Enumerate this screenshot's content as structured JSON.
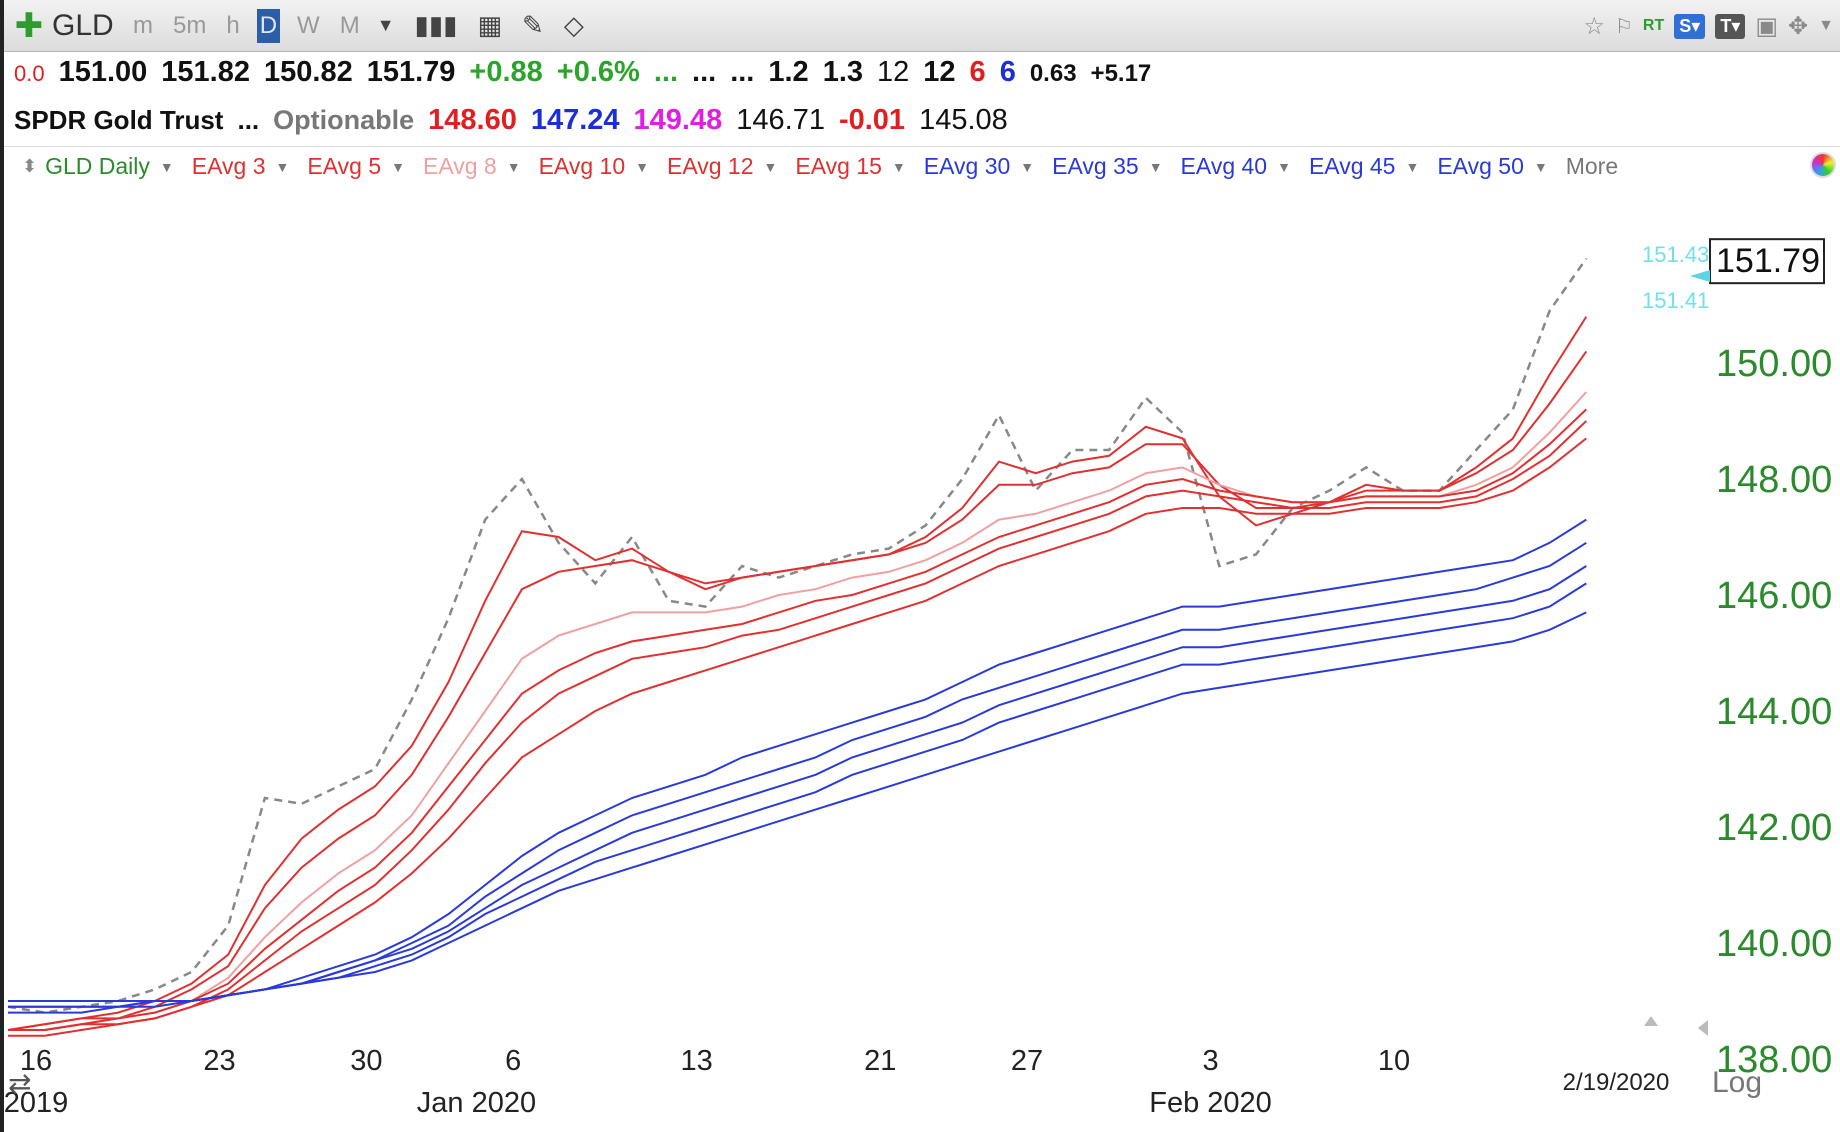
{
  "toolbar": {
    "symbol": "GLD",
    "timeframes": [
      "m",
      "5m",
      "h",
      "D",
      "W",
      "M"
    ],
    "active_timeframe": "D",
    "rt_label": "RT",
    "s_label": "S",
    "t_label": "T"
  },
  "quote": {
    "row1": [
      "0.0",
      "151.00",
      "151.82",
      "150.82",
      "151.79",
      "+0.88",
      "+0.6%",
      "...",
      "...",
      "...",
      "1.2",
      "1.3",
      "12",
      "12",
      "6",
      "6",
      "0.63",
      "+5.17"
    ],
    "name": "SPDR Gold Trust",
    "ellipsis": "...",
    "optionable": "Optionable",
    "row2_values": [
      "148.60",
      "147.24",
      "149.48",
      "146.71",
      "-0.01",
      "145.08"
    ]
  },
  "indicators": [
    {
      "label": "GLD Daily",
      "color": "#2b8a2b"
    },
    {
      "label": "EAvg 3",
      "color": "#e03030"
    },
    {
      "label": "EAvg 5",
      "color": "#e03030"
    },
    {
      "label": "EAvg 8",
      "color": "#f0a0a0"
    },
    {
      "label": "EAvg 10",
      "color": "#e03030"
    },
    {
      "label": "EAvg 12",
      "color": "#e03030"
    },
    {
      "label": "EAvg 15",
      "color": "#e03030"
    },
    {
      "label": "EAvg 30",
      "color": "#2a3ad8"
    },
    {
      "label": "EAvg 35",
      "color": "#2a3ad8"
    },
    {
      "label": "EAvg 40",
      "color": "#2a3ad8"
    },
    {
      "label": "EAvg 45",
      "color": "#2a3ad8"
    },
    {
      "label": "EAvg 50",
      "color": "#2a3ad8"
    }
  ],
  "more_label": "More",
  "chart_data": {
    "type": "line",
    "title": "GLD Daily",
    "ylim": [
      137.5,
      152.5
    ],
    "yticks": [
      "150.00",
      "148.00",
      "146.00",
      "144.00",
      "142.00",
      "140.00",
      "138.00"
    ],
    "ytick_values": [
      150,
      148,
      146,
      144,
      142,
      140,
      138
    ],
    "last_price": "151.79",
    "marker_labels": [
      "151.43",
      "151.41"
    ],
    "x_day_labels": [
      "16",
      "23",
      "30",
      "6",
      "13",
      "21",
      "27",
      "3",
      "10"
    ],
    "x_day_index": [
      0,
      5,
      9,
      13,
      18,
      23,
      27,
      32,
      37
    ],
    "x_month_labels": [
      "2019",
      "Jan 2020",
      "Feb 2020"
    ],
    "x_month_index": [
      0,
      12,
      32
    ],
    "date_readout": "2/19/2020",
    "scale_label": "Log",
    "series": [
      {
        "name": "GLD",
        "color": "#888888",
        "dashed": true,
        "values": [
          138.9,
          138.8,
          138.9,
          139.0,
          139.2,
          139.5,
          140.3,
          142.5,
          142.4,
          142.7,
          143.0,
          144.2,
          145.6,
          147.3,
          148.0,
          146.9,
          146.2,
          147.0,
          145.9,
          145.8,
          146.5,
          146.3,
          146.5,
          146.7,
          146.8,
          147.2,
          148.0,
          149.1,
          147.8,
          148.5,
          148.5,
          149.4,
          148.8,
          146.5,
          146.7,
          147.5,
          147.8,
          148.2,
          147.8,
          147.8,
          148.5,
          149.2,
          150.9,
          151.8
        ]
      },
      {
        "name": "EAvg 3",
        "color": "#e03030",
        "values": [
          138.5,
          138.6,
          138.7,
          138.8,
          139.0,
          139.3,
          139.8,
          141.0,
          141.8,
          142.3,
          142.7,
          143.4,
          144.5,
          145.9,
          147.1,
          147.0,
          146.6,
          146.8,
          146.4,
          146.1,
          146.3,
          146.4,
          146.5,
          146.6,
          146.7,
          147.0,
          147.5,
          148.3,
          148.1,
          148.3,
          148.4,
          148.9,
          148.7,
          147.7,
          147.2,
          147.4,
          147.6,
          147.9,
          147.8,
          147.8,
          148.2,
          148.7,
          149.8,
          150.8
        ]
      },
      {
        "name": "EAvg 5",
        "color": "#e03030",
        "values": [
          138.5,
          138.6,
          138.7,
          138.7,
          138.9,
          139.2,
          139.6,
          140.6,
          141.3,
          141.8,
          142.2,
          142.9,
          143.9,
          145.0,
          146.1,
          146.4,
          146.5,
          146.6,
          146.4,
          146.2,
          146.3,
          146.4,
          146.5,
          146.6,
          146.7,
          146.9,
          147.3,
          147.9,
          147.9,
          148.1,
          148.2,
          148.6,
          148.6,
          147.9,
          147.5,
          147.5,
          147.6,
          147.8,
          147.8,
          147.8,
          148.1,
          148.5,
          149.3,
          150.2
        ]
      },
      {
        "name": "EAvg 8",
        "color": "#f0a0a0",
        "values": [
          138.5,
          138.5,
          138.6,
          138.7,
          138.8,
          139.0,
          139.4,
          140.1,
          140.7,
          141.2,
          141.6,
          142.2,
          143.1,
          144.0,
          144.9,
          145.3,
          145.5,
          145.7,
          145.7,
          145.7,
          145.8,
          146.0,
          146.1,
          146.3,
          146.4,
          146.6,
          146.9,
          147.3,
          147.4,
          147.6,
          147.8,
          148.1,
          148.2,
          147.9,
          147.7,
          147.6,
          147.6,
          147.7,
          147.7,
          147.7,
          147.9,
          148.2,
          148.8,
          149.5
        ]
      },
      {
        "name": "EAvg 10",
        "color": "#e03030",
        "values": [
          138.5,
          138.5,
          138.6,
          138.7,
          138.8,
          139.0,
          139.3,
          139.9,
          140.4,
          140.9,
          141.3,
          141.9,
          142.7,
          143.5,
          144.3,
          144.7,
          145.0,
          145.2,
          145.3,
          145.4,
          145.5,
          145.7,
          145.9,
          146.0,
          146.2,
          146.4,
          146.7,
          147.0,
          147.2,
          147.4,
          147.6,
          147.9,
          148.0,
          147.8,
          147.7,
          147.6,
          147.6,
          147.7,
          147.7,
          147.7,
          147.8,
          148.1,
          148.6,
          149.2
        ]
      },
      {
        "name": "EAvg 12",
        "color": "#e03030",
        "values": [
          138.5,
          138.5,
          138.6,
          138.6,
          138.7,
          138.9,
          139.2,
          139.7,
          140.2,
          140.6,
          141.0,
          141.6,
          142.3,
          143.1,
          143.8,
          144.3,
          144.6,
          144.9,
          145.0,
          145.1,
          145.3,
          145.4,
          145.6,
          145.8,
          146.0,
          146.2,
          146.5,
          146.8,
          147.0,
          147.2,
          147.4,
          147.7,
          147.8,
          147.7,
          147.6,
          147.5,
          147.5,
          147.6,
          147.6,
          147.6,
          147.7,
          148.0,
          148.4,
          149.0
        ]
      },
      {
        "name": "EAvg 15",
        "color": "#e03030",
        "values": [
          138.4,
          138.4,
          138.5,
          138.6,
          138.7,
          138.9,
          139.1,
          139.5,
          139.9,
          140.3,
          140.7,
          141.2,
          141.8,
          142.5,
          143.2,
          143.6,
          144.0,
          144.3,
          144.5,
          144.7,
          144.9,
          145.1,
          145.3,
          145.5,
          145.7,
          145.9,
          146.2,
          146.5,
          146.7,
          146.9,
          147.1,
          147.4,
          147.5,
          147.5,
          147.4,
          147.4,
          147.4,
          147.5,
          147.5,
          147.5,
          147.6,
          147.8,
          148.2,
          148.7
        ]
      },
      {
        "name": "EAvg 30",
        "color": "#2a3ad8",
        "values": [
          139.0,
          139.0,
          139.0,
          139.0,
          139.0,
          139.0,
          139.1,
          139.2,
          139.4,
          139.6,
          139.8,
          140.1,
          140.5,
          141.0,
          141.5,
          141.9,
          142.2,
          142.5,
          142.7,
          142.9,
          143.2,
          143.4,
          143.6,
          143.8,
          144.0,
          144.2,
          144.5,
          144.8,
          145.0,
          145.2,
          145.4,
          145.6,
          145.8,
          145.8,
          145.9,
          146.0,
          146.1,
          146.2,
          146.3,
          146.4,
          146.5,
          146.6,
          146.9,
          147.3
        ]
      },
      {
        "name": "EAvg 35",
        "color": "#2a3ad8",
        "values": [
          139.0,
          139.0,
          139.0,
          139.0,
          139.0,
          139.0,
          139.1,
          139.2,
          139.3,
          139.5,
          139.7,
          140.0,
          140.3,
          140.8,
          141.2,
          141.6,
          141.9,
          142.2,
          142.4,
          142.6,
          142.8,
          143.0,
          143.2,
          143.5,
          143.7,
          143.9,
          144.2,
          144.4,
          144.6,
          144.8,
          145.0,
          145.2,
          145.4,
          145.4,
          145.5,
          145.6,
          145.7,
          145.8,
          145.9,
          146.0,
          146.1,
          146.3,
          146.5,
          146.9
        ]
      },
      {
        "name": "EAvg 40",
        "color": "#2a3ad8",
        "values": [
          138.9,
          138.9,
          138.9,
          138.9,
          139.0,
          139.0,
          139.1,
          139.2,
          139.3,
          139.5,
          139.7,
          139.9,
          140.2,
          140.6,
          141.0,
          141.3,
          141.6,
          141.9,
          142.1,
          142.3,
          142.5,
          142.7,
          142.9,
          143.2,
          143.4,
          143.6,
          143.8,
          144.1,
          144.3,
          144.5,
          144.7,
          144.9,
          145.1,
          145.1,
          145.2,
          145.3,
          145.4,
          145.5,
          145.6,
          145.7,
          145.8,
          145.9,
          146.1,
          146.5
        ]
      },
      {
        "name": "EAvg 45",
        "color": "#2a3ad8",
        "values": [
          138.9,
          138.9,
          138.9,
          138.9,
          139.0,
          139.0,
          139.1,
          139.2,
          139.3,
          139.4,
          139.6,
          139.8,
          140.1,
          140.5,
          140.8,
          141.1,
          141.4,
          141.6,
          141.8,
          142.0,
          142.2,
          142.4,
          142.6,
          142.9,
          143.1,
          143.3,
          143.5,
          143.8,
          144.0,
          144.2,
          144.4,
          144.6,
          144.8,
          144.8,
          144.9,
          145.0,
          145.1,
          145.2,
          145.3,
          145.4,
          145.5,
          145.6,
          145.8,
          146.2
        ]
      },
      {
        "name": "EAvg 50",
        "color": "#2a3ad8",
        "values": [
          138.8,
          138.8,
          138.8,
          138.9,
          138.9,
          139.0,
          139.1,
          139.2,
          139.3,
          139.4,
          139.5,
          139.7,
          140.0,
          140.3,
          140.6,
          140.9,
          141.1,
          141.3,
          141.5,
          141.7,
          141.9,
          142.1,
          142.3,
          142.5,
          142.7,
          142.9,
          143.1,
          143.3,
          143.5,
          143.7,
          143.9,
          144.1,
          144.3,
          144.4,
          144.5,
          144.6,
          144.7,
          144.8,
          144.9,
          145.0,
          145.1,
          145.2,
          145.4,
          145.7
        ]
      }
    ]
  }
}
